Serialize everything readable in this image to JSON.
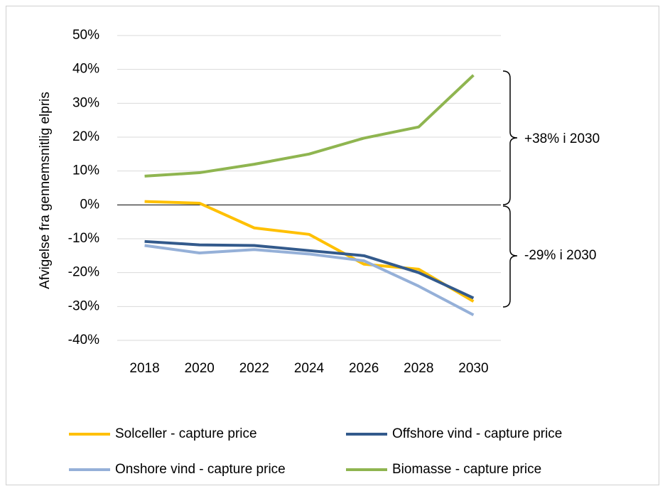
{
  "chart_data": {
    "type": "line",
    "y_label": "Afvigelse fra gennemsnitlig elpris",
    "categories": [
      "2018",
      "2020",
      "2022",
      "2024",
      "2026",
      "2028",
      "2030"
    ],
    "series": [
      {
        "name": "Solceller - capture price",
        "color": "#ffc000",
        "values": [
          1,
          0.5,
          -6.8,
          -8.7,
          -17.5,
          -19,
          -28.5
        ]
      },
      {
        "name": "Offshore vind - capture price",
        "color": "#335a8c",
        "values": [
          -10.8,
          -11.8,
          -12,
          -13.5,
          -15,
          -20,
          -27.5
        ]
      },
      {
        "name": "Onshore vind - capture price",
        "color": "#95b0d8",
        "values": [
          -12,
          -14.2,
          -13.2,
          -14.5,
          -16.5,
          -24,
          -32.5
        ]
      },
      {
        "name": "Biomasse - capture price",
        "color": "#8fb550",
        "values": [
          8.5,
          9.5,
          12,
          15,
          19.7,
          23,
          38.3
        ]
      }
    ],
    "ylim": [
      -40,
      50
    ],
    "yticks": [
      {
        "value": -40,
        "label": "-40%"
      },
      {
        "value": -30,
        "label": "-30%"
      },
      {
        "value": -20,
        "label": "-20%"
      },
      {
        "value": -10,
        "label": "-10%"
      },
      {
        "value": 0,
        "label": "0%"
      },
      {
        "value": 10,
        "label": "10%"
      },
      {
        "value": 20,
        "label": "20%"
      },
      {
        "value": 30,
        "label": "30%"
      },
      {
        "value": 40,
        "label": "40%"
      },
      {
        "value": 50,
        "label": "50%"
      }
    ],
    "grid": true,
    "legend": "bottom",
    "annotations": [
      "+38% i 2030",
      "-29% i 2030"
    ]
  }
}
